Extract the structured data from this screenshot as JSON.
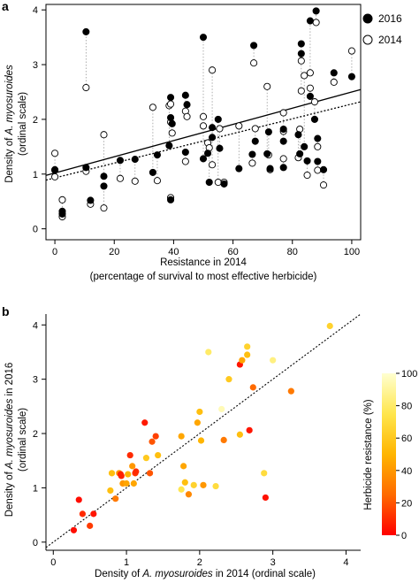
{
  "chart_data": [
    {
      "panel": "a",
      "type": "scatter",
      "xlabel": "Resistance in 2014",
      "xlabel2": "(percentage of survival to most effective herbicide)",
      "ylabel": "Density of A. myosuroides",
      "ylabel_italic": "A. myosuroides",
      "ylabel2": "(ordinal scale)",
      "xlim": [
        -3,
        103
      ],
      "ylim": [
        -0.2,
        4.1
      ],
      "xticks": [
        0,
        20,
        40,
        60,
        80,
        100
      ],
      "yticks": [
        0,
        1,
        2,
        3,
        4
      ],
      "legend_position": "top-right",
      "series": [
        {
          "name": "2016",
          "style": "filled",
          "line": "solid",
          "fit": [
            1.02,
            0.0148
          ]
        },
        {
          "name": "2014",
          "style": "open",
          "line": "dotted",
          "fit": [
            0.93,
            0.0135
          ]
        }
      ],
      "pairs": [
        {
          "x": 0,
          "y2014": 0.95,
          "y2016": 1.07
        },
        {
          "x": 0,
          "y2014": 1.38,
          "y2016": 1.08
        },
        {
          "x": 2.5,
          "y2014": 0.53,
          "y2016": 0.32
        },
        {
          "x": 2.5,
          "y2014": 0.22,
          "y2016": 0.27
        },
        {
          "x": 10.5,
          "y2014": 2.58,
          "y2016": 3.6
        },
        {
          "x": 10.5,
          "y2014": 1.05,
          "y2016": 1.12
        },
        {
          "x": 12,
          "y2014": 0.45,
          "y2016": 0.52
        },
        {
          "x": 16.5,
          "y2014": 1.72,
          "y2016": 0.96
        },
        {
          "x": 16.5,
          "y2014": 0.38,
          "y2016": 0.78
        },
        {
          "x": 22,
          "y2014": 0.92,
          "y2016": 1.25
        },
        {
          "x": 27,
          "y2014": 0.87,
          "y2016": 1.27
        },
        {
          "x": 33,
          "y2014": 2.22,
          "y2016": 1.03
        },
        {
          "x": 34.5,
          "y2014": 0.88,
          "y2016": 1.35
        },
        {
          "x": 38.5,
          "y2014": 2.25,
          "y2016": 1.52
        },
        {
          "x": 39,
          "y2014": 2.28,
          "y2016": 2.4
        },
        {
          "x": 39,
          "y2014": 1.95,
          "y2016": 2.03
        },
        {
          "x": 39,
          "y2014": 0.57,
          "y2016": 0.53
        },
        {
          "x": 39.5,
          "y2014": 1.75,
          "y2016": 1.92
        },
        {
          "x": 44,
          "y2014": 1.23,
          "y2016": 1.4
        },
        {
          "x": 44,
          "y2014": 2.15,
          "y2016": 2.44
        },
        {
          "x": 44.5,
          "y2014": 2.05,
          "y2016": 2.27
        },
        {
          "x": 50,
          "y2014": 2.05,
          "y2016": 3.5
        },
        {
          "x": 50,
          "y2014": 1.88,
          "y2016": 1.28
        },
        {
          "x": 51.5,
          "y2014": 1.57,
          "y2016": 1.38
        },
        {
          "x": 52,
          "y2014": 1.48,
          "y2016": 0.85
        },
        {
          "x": 53,
          "y2014": 2.9,
          "y2016": 1.67
        },
        {
          "x": 53,
          "y2014": 1.17,
          "y2016": 1.85
        },
        {
          "x": 55,
          "y2014": 0.85,
          "y2016": 2.0
        },
        {
          "x": 55.5,
          "y2014": 1.83,
          "y2016": 1.47
        },
        {
          "x": 57,
          "y2014": 0.85,
          "y2016": 0.82
        },
        {
          "x": 62,
          "y2014": 1.88,
          "y2016": 1.1
        },
        {
          "x": 66.5,
          "y2014": 1.2,
          "y2016": 1.36
        },
        {
          "x": 67,
          "y2014": 3.03,
          "y2016": 3.35
        },
        {
          "x": 67.5,
          "y2014": 1.83,
          "y2016": 1.6
        },
        {
          "x": 71.5,
          "y2014": 2.6,
          "y2016": 1.37
        },
        {
          "x": 72,
          "y2014": 1.35,
          "y2016": 1.77
        },
        {
          "x": 72.5,
          "y2014": 1.08,
          "y2016": 1.1
        },
        {
          "x": 77,
          "y2014": 2.12,
          "y2016": 1.6
        },
        {
          "x": 77,
          "y2014": 1.28,
          "y2016": 1.12
        },
        {
          "x": 77,
          "y2014": 1.78,
          "y2016": 1.82
        },
        {
          "x": 82,
          "y2014": 1.3,
          "y2016": 1.72
        },
        {
          "x": 82.5,
          "y2014": 1.82,
          "y2016": 1.37
        },
        {
          "x": 83,
          "y2014": 2.52,
          "y2016": 3.38
        },
        {
          "x": 83,
          "y2014": 3.07,
          "y2016": 3.2
        },
        {
          "x": 84,
          "y2014": 2.8,
          "y2016": 1.5
        },
        {
          "x": 85,
          "y2014": 0.98,
          "y2016": 1.24
        },
        {
          "x": 86,
          "y2014": 2.85,
          "y2016": 3.8
        },
        {
          "x": 86,
          "y2014": 2.57,
          "y2016": 2.42
        },
        {
          "x": 87.5,
          "y2014": 2.32,
          "y2016": 2.0
        },
        {
          "x": 88,
          "y2014": 3.77,
          "y2016": 3.98
        },
        {
          "x": 88.5,
          "y2014": 1.5,
          "y2016": 1.65
        },
        {
          "x": 88.5,
          "y2014": 1.07,
          "y2016": 1.23
        },
        {
          "x": 90.5,
          "y2014": 0.8,
          "y2016": 1.08
        },
        {
          "x": 94,
          "y2014": 2.68,
          "y2016": 2.85
        },
        {
          "x": 100,
          "y2014": 3.25,
          "y2016": 2.78
        }
      ]
    },
    {
      "panel": "b",
      "type": "scatter",
      "xlabel": "Density of A. myosuroides in 2014 (ordinal scale)",
      "xlabel_italic": "A. myosuroides",
      "ylabel": "Density of A. myosuroides in 2016",
      "ylabel_italic": "A. myosuroides",
      "ylabel2": "(ordinal scale)",
      "xlim": [
        -0.1,
        4.2
      ],
      "ylim": [
        -0.15,
        4.2
      ],
      "xticks": [
        0,
        1,
        2,
        3,
        4
      ],
      "yticks": [
        0,
        1,
        2,
        3,
        4
      ],
      "reference_line": "1:1 dotted",
      "colorbar": {
        "label": "Herbicide resistance (%)",
        "ticks": [
          0,
          20,
          40,
          60,
          80,
          100
        ],
        "colors": [
          "#ff0000",
          "#ff6a00",
          "#ffb500",
          "#ffe64d",
          "#ffffd0"
        ]
      },
      "points": [
        {
          "x": 0.28,
          "y": 0.22,
          "r": 3
        },
        {
          "x": 0.35,
          "y": 0.78,
          "r": 3
        },
        {
          "x": 0.4,
          "y": 0.52,
          "r": 10
        },
        {
          "x": 0.5,
          "y": 0.3,
          "r": 14
        },
        {
          "x": 0.55,
          "y": 0.52,
          "r": 5
        },
        {
          "x": 0.78,
          "y": 0.95,
          "r": 55
        },
        {
          "x": 0.8,
          "y": 1.27,
          "r": 55
        },
        {
          "x": 0.9,
          "y": 1.27,
          "r": 40
        },
        {
          "x": 0.95,
          "y": 1.08,
          "r": 50
        },
        {
          "x": 0.95,
          "y": 1.08,
          "r": 40
        },
        {
          "x": 1.0,
          "y": 1.08,
          "r": 45
        },
        {
          "x": 1.02,
          "y": 1.25,
          "r": 50
        },
        {
          "x": 1.05,
          "y": 1.6,
          "r": 10
        },
        {
          "x": 1.08,
          "y": 1.4,
          "r": 40
        },
        {
          "x": 1.1,
          "y": 1.08,
          "r": 45
        },
        {
          "x": 1.12,
          "y": 1.27,
          "r": 12
        },
        {
          "x": 1.13,
          "y": 1.3,
          "r": 10
        },
        {
          "x": 0.92,
          "y": 1.25,
          "r": 8
        },
        {
          "x": 0.93,
          "y": 1.22,
          "r": 8
        },
        {
          "x": 0.85,
          "y": 0.8,
          "r": 30
        },
        {
          "x": 1.25,
          "y": 2.2,
          "r": 6
        },
        {
          "x": 1.27,
          "y": 1.55,
          "r": 60
        },
        {
          "x": 1.32,
          "y": 1.27,
          "r": 20
        },
        {
          "x": 1.35,
          "y": 1.85,
          "r": 20
        },
        {
          "x": 1.4,
          "y": 1.95,
          "r": 15
        },
        {
          "x": 1.43,
          "y": 1.6,
          "r": 55
        },
        {
          "x": 1.75,
          "y": 1.95,
          "r": 45
        },
        {
          "x": 1.78,
          "y": 1.4,
          "r": 45
        },
        {
          "x": 1.8,
          "y": 1.1,
          "r": 55
        },
        {
          "x": 1.85,
          "y": 0.88,
          "r": 35
        },
        {
          "x": 1.92,
          "y": 1.05,
          "r": 65
        },
        {
          "x": 1.75,
          "y": 0.97,
          "r": 75
        },
        {
          "x": 2.05,
          "y": 1.05,
          "r": 40
        },
        {
          "x": 2.0,
          "y": 2.4,
          "r": 55
        },
        {
          "x": 1.97,
          "y": 2.2,
          "r": 45
        },
        {
          "x": 2.02,
          "y": 1.87,
          "r": 50
        },
        {
          "x": 2.12,
          "y": 3.5,
          "r": 80
        },
        {
          "x": 2.22,
          "y": 1.03,
          "r": 70
        },
        {
          "x": 2.3,
          "y": 2.45,
          "r": 95
        },
        {
          "x": 2.33,
          "y": 1.88,
          "r": 30
        },
        {
          "x": 2.4,
          "y": 3.0,
          "r": 60
        },
        {
          "x": 2.55,
          "y": 3.27,
          "r": 5
        },
        {
          "x": 2.55,
          "y": 1.98,
          "r": 55
        },
        {
          "x": 2.58,
          "y": 3.35,
          "r": 45
        },
        {
          "x": 2.68,
          "y": 2.06,
          "r": 5
        },
        {
          "x": 2.65,
          "y": 3.6,
          "r": 65
        },
        {
          "x": 2.65,
          "y": 3.45,
          "r": 55
        },
        {
          "x": 2.73,
          "y": 2.85,
          "r": 25
        },
        {
          "x": 2.88,
          "y": 1.27,
          "r": 70
        },
        {
          "x": 2.9,
          "y": 0.82,
          "r": 4
        },
        {
          "x": 3.0,
          "y": 3.35,
          "r": 85
        },
        {
          "x": 3.25,
          "y": 2.78,
          "r": 30
        },
        {
          "x": 3.78,
          "y": 3.98,
          "r": 65
        }
      ]
    }
  ],
  "labels": {
    "panel_a": "a",
    "panel_b": "b",
    "legend_2016": "2016",
    "legend_2014": "2014",
    "a_xlabel": "Resistance in 2014",
    "a_xlabel2": "(percentage of survival to most effective herbicide)",
    "a_ylabel_pre": "Density of ",
    "a_ylabel_ital": "A. myosuroides",
    "a_ylabel2": "(ordinal scale)",
    "b_xlabel_pre": "Density of ",
    "b_xlabel_ital": "A. myosuroides",
    "b_xlabel_post": "  in 2014 (ordinal scale)",
    "b_ylabel_pre": "Density of ",
    "b_ylabel_ital": "A. myosuroides",
    "b_ylabel_post": " in 2016",
    "b_ylabel2": "(ordinal scale)",
    "colorbar_label": "Herbicide resistance (%)"
  }
}
